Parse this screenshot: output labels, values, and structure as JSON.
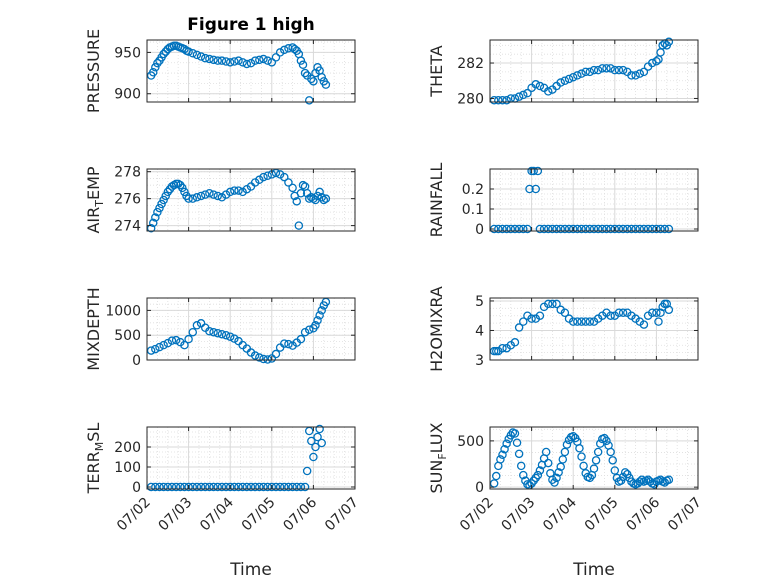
{
  "figure": {
    "title": "Figure 1 high",
    "xlabel": "Time"
  },
  "chart_data": [
    {
      "type": "scatter",
      "ylabel_main": "PRESSURE",
      "ylabel_sub": "",
      "ylim": [
        890,
        965
      ],
      "yticks": [
        "900",
        "950"
      ],
      "ytick_values": [
        900,
        950
      ],
      "xlim": [
        0,
        5
      ],
      "xticks": [
        "07/02",
        "07/03",
        "07/04",
        "07/05",
        "07/06",
        "07/07"
      ],
      "grid": true,
      "x": [
        0.1,
        0.15,
        0.2,
        0.25,
        0.3,
        0.35,
        0.4,
        0.45,
        0.5,
        0.55,
        0.6,
        0.65,
        0.7,
        0.75,
        0.8,
        0.85,
        0.9,
        0.95,
        1.0,
        1.1,
        1.2,
        1.3,
        1.4,
        1.5,
        1.6,
        1.7,
        1.8,
        1.9,
        2.0,
        2.1,
        2.2,
        2.3,
        2.4,
        2.5,
        2.6,
        2.7,
        2.8,
        2.9,
        3.0,
        3.1,
        3.2,
        3.3,
        3.4,
        3.5,
        3.55,
        3.6,
        3.65,
        3.7,
        3.75,
        3.8,
        3.85,
        3.9,
        3.95,
        4.0,
        4.05,
        4.1,
        4.15,
        4.2,
        4.25,
        4.3
      ],
      "y": [
        922,
        926,
        932,
        937,
        940,
        944,
        948,
        951,
        954,
        956,
        957,
        958,
        958,
        957,
        956,
        955,
        954,
        952,
        951,
        949,
        947,
        945,
        943,
        942,
        941,
        940,
        940,
        939,
        938,
        939,
        940,
        938,
        936,
        937,
        940,
        941,
        942,
        940,
        938,
        944,
        950,
        953,
        955,
        956,
        954,
        952,
        948,
        940,
        935,
        925,
        922,
        892,
        918,
        915,
        925,
        932,
        928,
        920,
        915,
        911
      ]
    },
    {
      "type": "scatter",
      "ylabel_main": "THETA",
      "ylabel_sub": "",
      "ylim": [
        279.8,
        283.3
      ],
      "yticks": [
        "280",
        "282"
      ],
      "ytick_values": [
        280,
        282
      ],
      "xlim": [
        0,
        5
      ],
      "xticks": [
        "07/02",
        "07/03",
        "07/04",
        "07/05",
        "07/06",
        "07/07"
      ],
      "grid": true,
      "x": [
        0.1,
        0.2,
        0.3,
        0.4,
        0.5,
        0.6,
        0.7,
        0.8,
        0.9,
        1.0,
        1.1,
        1.2,
        1.3,
        1.4,
        1.5,
        1.6,
        1.7,
        1.8,
        1.9,
        2.0,
        2.1,
        2.2,
        2.3,
        2.4,
        2.5,
        2.6,
        2.7,
        2.8,
        2.9,
        3.0,
        3.1,
        3.2,
        3.3,
        3.4,
        3.5,
        3.6,
        3.7,
        3.8,
        3.9,
        4.0,
        4.05,
        4.1,
        4.15,
        4.2,
        4.25,
        4.3
      ],
      "y": [
        279.9,
        279.9,
        279.9,
        279.9,
        280.0,
        280.0,
        280.1,
        280.2,
        280.3,
        280.6,
        280.8,
        280.7,
        280.6,
        280.4,
        280.5,
        280.7,
        280.9,
        281.0,
        281.1,
        281.2,
        281.3,
        281.4,
        281.5,
        281.5,
        281.6,
        281.6,
        281.7,
        281.7,
        281.7,
        281.6,
        281.6,
        281.6,
        281.5,
        281.3,
        281.3,
        281.4,
        281.5,
        281.8,
        282.0,
        282.1,
        282.2,
        282.6,
        283.0,
        283.1,
        283.0,
        283.2
      ]
    },
    {
      "type": "scatter",
      "ylabel_main": "AIR",
      "ylabel_sub": "T",
      "ylabel_end": "EMP",
      "ylim": [
        273.6,
        278.2
      ],
      "yticks": [
        "274",
        "276",
        "278"
      ],
      "ytick_values": [
        274,
        276,
        278
      ],
      "xlim": [
        0,
        5
      ],
      "xticks": [
        "07/02",
        "07/03",
        "07/04",
        "07/05",
        "07/06",
        "07/07"
      ],
      "grid": true,
      "x": [
        0.1,
        0.15,
        0.2,
        0.25,
        0.3,
        0.35,
        0.4,
        0.45,
        0.5,
        0.55,
        0.6,
        0.65,
        0.7,
        0.75,
        0.8,
        0.85,
        0.9,
        0.95,
        1.0,
        1.1,
        1.2,
        1.3,
        1.4,
        1.5,
        1.6,
        1.7,
        1.8,
        1.9,
        2.0,
        2.1,
        2.2,
        2.3,
        2.4,
        2.5,
        2.6,
        2.7,
        2.8,
        2.9,
        3.0,
        3.1,
        3.2,
        3.3,
        3.4,
        3.5,
        3.55,
        3.6,
        3.65,
        3.7,
        3.75,
        3.8,
        3.85,
        3.9,
        3.95,
        4.0,
        4.05,
        4.1,
        4.15,
        4.2,
        4.25,
        4.3
      ],
      "y": [
        273.8,
        274.2,
        274.6,
        275.0,
        275.3,
        275.6,
        275.9,
        276.2,
        276.5,
        276.7,
        276.9,
        277.0,
        277.1,
        277.1,
        277.0,
        276.8,
        276.5,
        276.2,
        276.0,
        276.0,
        276.1,
        276.2,
        276.3,
        276.4,
        276.3,
        276.2,
        276.1,
        276.3,
        276.5,
        276.6,
        276.6,
        276.5,
        276.7,
        276.9,
        277.2,
        277.4,
        277.6,
        277.7,
        277.8,
        277.9,
        277.8,
        277.6,
        277.2,
        276.8,
        276.2,
        275.8,
        274.0,
        276.4,
        277.0,
        276.9,
        276.4,
        276.0,
        276.1,
        276.0,
        275.9,
        276.2,
        276.5,
        276.1,
        275.9,
        276.0
      ]
    },
    {
      "type": "scatter",
      "ylabel_main": "RAINFALL",
      "ylabel_sub": "",
      "ylim": [
        -0.01,
        0.3
      ],
      "yticks": [
        "0",
        "0.1",
        "0.2"
      ],
      "ytick_values": [
        0,
        0.1,
        0.2
      ],
      "xlim": [
        0,
        5
      ],
      "xticks": [
        "07/02",
        "07/03",
        "07/04",
        "07/05",
        "07/06",
        "07/07"
      ],
      "grid": true,
      "x": [
        0.1,
        0.2,
        0.3,
        0.4,
        0.5,
        0.6,
        0.7,
        0.8,
        0.9,
        0.95,
        1.0,
        1.05,
        1.1,
        1.15,
        1.2,
        1.3,
        1.4,
        1.5,
        1.6,
        1.7,
        1.8,
        1.9,
        2.0,
        2.1,
        2.2,
        2.3,
        2.4,
        2.5,
        2.6,
        2.7,
        2.8,
        2.9,
        3.0,
        3.1,
        3.2,
        3.3,
        3.4,
        3.5,
        3.6,
        3.7,
        3.8,
        3.9,
        4.0,
        4.1,
        4.2,
        4.3
      ],
      "y": [
        0,
        0,
        0,
        0,
        0,
        0,
        0,
        0,
        0,
        0.2,
        0.29,
        0.29,
        0.2,
        0.29,
        0,
        0,
        0,
        0,
        0,
        0,
        0,
        0,
        0,
        0,
        0,
        0,
        0,
        0,
        0,
        0,
        0,
        0,
        0,
        0,
        0,
        0,
        0,
        0,
        0,
        0,
        0,
        0,
        0,
        0,
        0,
        0
      ]
    },
    {
      "type": "scatter",
      "ylabel_main": "MIXDEPTH",
      "ylabel_sub": "",
      "ylim": [
        0,
        1250
      ],
      "yticks": [
        "0",
        "500",
        "1000"
      ],
      "ytick_values": [
        0,
        500,
        1000
      ],
      "xlim": [
        0,
        5
      ],
      "xticks": [
        "07/02",
        "07/03",
        "07/04",
        "07/05",
        "07/06",
        "07/07"
      ],
      "grid": true,
      "x": [
        0.1,
        0.2,
        0.3,
        0.4,
        0.5,
        0.6,
        0.7,
        0.8,
        0.9,
        1.0,
        1.1,
        1.2,
        1.3,
        1.4,
        1.5,
        1.6,
        1.7,
        1.8,
        1.9,
        2.0,
        2.1,
        2.2,
        2.3,
        2.4,
        2.5,
        2.6,
        2.7,
        2.8,
        2.9,
        3.0,
        3.1,
        3.2,
        3.3,
        3.4,
        3.5,
        3.6,
        3.7,
        3.8,
        3.9,
        4.0,
        4.05,
        4.1,
        4.15,
        4.2,
        4.25,
        4.3
      ],
      "y": [
        190,
        220,
        260,
        300,
        340,
        390,
        400,
        360,
        300,
        420,
        560,
        700,
        740,
        650,
        580,
        560,
        540,
        520,
        500,
        470,
        430,
        380,
        300,
        230,
        150,
        90,
        50,
        20,
        10,
        30,
        120,
        250,
        330,
        320,
        290,
        350,
        420,
        560,
        610,
        640,
        700,
        800,
        900,
        1000,
        1100,
        1170
      ]
    },
    {
      "type": "scatter",
      "ylabel_main": "H2OMIXRA",
      "ylabel_sub": "",
      "ylim": [
        3.0,
        5.1
      ],
      "yticks": [
        "3",
        "4",
        "5"
      ],
      "ytick_values": [
        3,
        4,
        5
      ],
      "xlim": [
        0,
        5
      ],
      "xticks": [
        "07/02",
        "07/03",
        "07/04",
        "07/05",
        "07/06",
        "07/07"
      ],
      "grid": true,
      "x": [
        0.1,
        0.15,
        0.2,
        0.3,
        0.4,
        0.5,
        0.6,
        0.7,
        0.8,
        0.9,
        1.0,
        1.1,
        1.2,
        1.3,
        1.4,
        1.5,
        1.6,
        1.7,
        1.8,
        1.9,
        2.0,
        2.1,
        2.2,
        2.3,
        2.4,
        2.5,
        2.6,
        2.7,
        2.8,
        2.9,
        3.0,
        3.1,
        3.2,
        3.3,
        3.4,
        3.5,
        3.6,
        3.7,
        3.8,
        3.9,
        4.0,
        4.05,
        4.1,
        4.15,
        4.2,
        4.25,
        4.3
      ],
      "y": [
        3.3,
        3.3,
        3.3,
        3.4,
        3.4,
        3.5,
        3.6,
        4.1,
        4.3,
        4.5,
        4.4,
        4.4,
        4.5,
        4.8,
        4.9,
        4.9,
        4.9,
        4.7,
        4.6,
        4.4,
        4.3,
        4.3,
        4.3,
        4.3,
        4.3,
        4.3,
        4.4,
        4.5,
        4.6,
        4.5,
        4.5,
        4.6,
        4.6,
        4.6,
        4.5,
        4.4,
        4.3,
        4.2,
        4.5,
        4.6,
        4.6,
        4.3,
        4.6,
        4.8,
        4.9,
        4.9,
        4.7
      ]
    },
    {
      "type": "scatter",
      "ylabel_main": "TERR",
      "ylabel_sub": "M",
      "ylabel_end": "SL",
      "ylim": [
        -10,
        300
      ],
      "yticks": [
        "0",
        "100",
        "200"
      ],
      "ytick_values": [
        0,
        100,
        200
      ],
      "xlim": [
        0,
        5
      ],
      "xticks": [
        "07/02",
        "07/03",
        "07/04",
        "07/05",
        "07/06",
        "07/07"
      ],
      "grid": true,
      "x": [
        0.1,
        0.2,
        0.3,
        0.4,
        0.5,
        0.6,
        0.7,
        0.8,
        0.9,
        1.0,
        1.1,
        1.2,
        1.3,
        1.4,
        1.5,
        1.6,
        1.7,
        1.8,
        1.9,
        2.0,
        2.1,
        2.2,
        2.3,
        2.4,
        2.5,
        2.6,
        2.7,
        2.8,
        2.9,
        3.0,
        3.1,
        3.2,
        3.3,
        3.4,
        3.5,
        3.6,
        3.7,
        3.8,
        3.85,
        3.9,
        3.95,
        4.0,
        4.05,
        4.1,
        4.15,
        4.2
      ],
      "y": [
        0,
        0,
        0,
        0,
        0,
        0,
        0,
        0,
        0,
        0,
        0,
        0,
        0,
        0,
        0,
        0,
        0,
        0,
        0,
        0,
        0,
        0,
        0,
        0,
        0,
        0,
        0,
        0,
        0,
        0,
        0,
        0,
        0,
        0,
        0,
        0,
        0,
        0,
        80,
        280,
        230,
        150,
        200,
        250,
        290,
        220
      ]
    },
    {
      "type": "scatter",
      "ylabel_main": "SUN",
      "ylabel_sub": "F",
      "ylabel_end": "LUX",
      "ylim": [
        -20,
        650
      ],
      "yticks": [
        "0",
        "500"
      ],
      "ytick_values": [
        0,
        500
      ],
      "xlim": [
        0,
        5
      ],
      "xticks": [
        "07/02",
        "07/03",
        "07/04",
        "07/05",
        "07/06",
        "07/07"
      ],
      "grid": true,
      "x": [
        0.1,
        0.15,
        0.2,
        0.25,
        0.3,
        0.35,
        0.4,
        0.45,
        0.5,
        0.55,
        0.6,
        0.65,
        0.7,
        0.75,
        0.8,
        0.85,
        0.9,
        0.95,
        1.0,
        1.05,
        1.1,
        1.15,
        1.2,
        1.25,
        1.3,
        1.35,
        1.4,
        1.45,
        1.5,
        1.55,
        1.6,
        1.65,
        1.7,
        1.75,
        1.8,
        1.85,
        1.9,
        1.95,
        2.0,
        2.05,
        2.1,
        2.15,
        2.2,
        2.25,
        2.3,
        2.35,
        2.4,
        2.45,
        2.5,
        2.55,
        2.6,
        2.65,
        2.7,
        2.75,
        2.8,
        2.85,
        2.9,
        2.95,
        3.0,
        3.05,
        3.1,
        3.15,
        3.2,
        3.25,
        3.3,
        3.35,
        3.4,
        3.45,
        3.5,
        3.55,
        3.6,
        3.65,
        3.7,
        3.75,
        3.8,
        3.85,
        3.9,
        3.95,
        4.0,
        4.05,
        4.1,
        4.15,
        4.2,
        4.25,
        4.3
      ],
      "y": [
        40,
        120,
        230,
        300,
        350,
        410,
        470,
        520,
        560,
        590,
        580,
        480,
        360,
        230,
        130,
        70,
        30,
        20,
        40,
        70,
        100,
        130,
        180,
        240,
        310,
        380,
        260,
        150,
        80,
        50,
        100,
        160,
        220,
        300,
        380,
        460,
        510,
        540,
        550,
        530,
        490,
        420,
        330,
        230,
        150,
        110,
        100,
        130,
        200,
        290,
        380,
        470,
        520,
        530,
        500,
        450,
        380,
        290,
        180,
        100,
        60,
        70,
        110,
        160,
        140,
        100,
        60,
        40,
        30,
        40,
        60,
        80,
        60,
        70,
        80,
        60,
        40,
        30,
        60,
        70,
        80,
        60,
        50,
        70,
        80
      ]
    }
  ]
}
